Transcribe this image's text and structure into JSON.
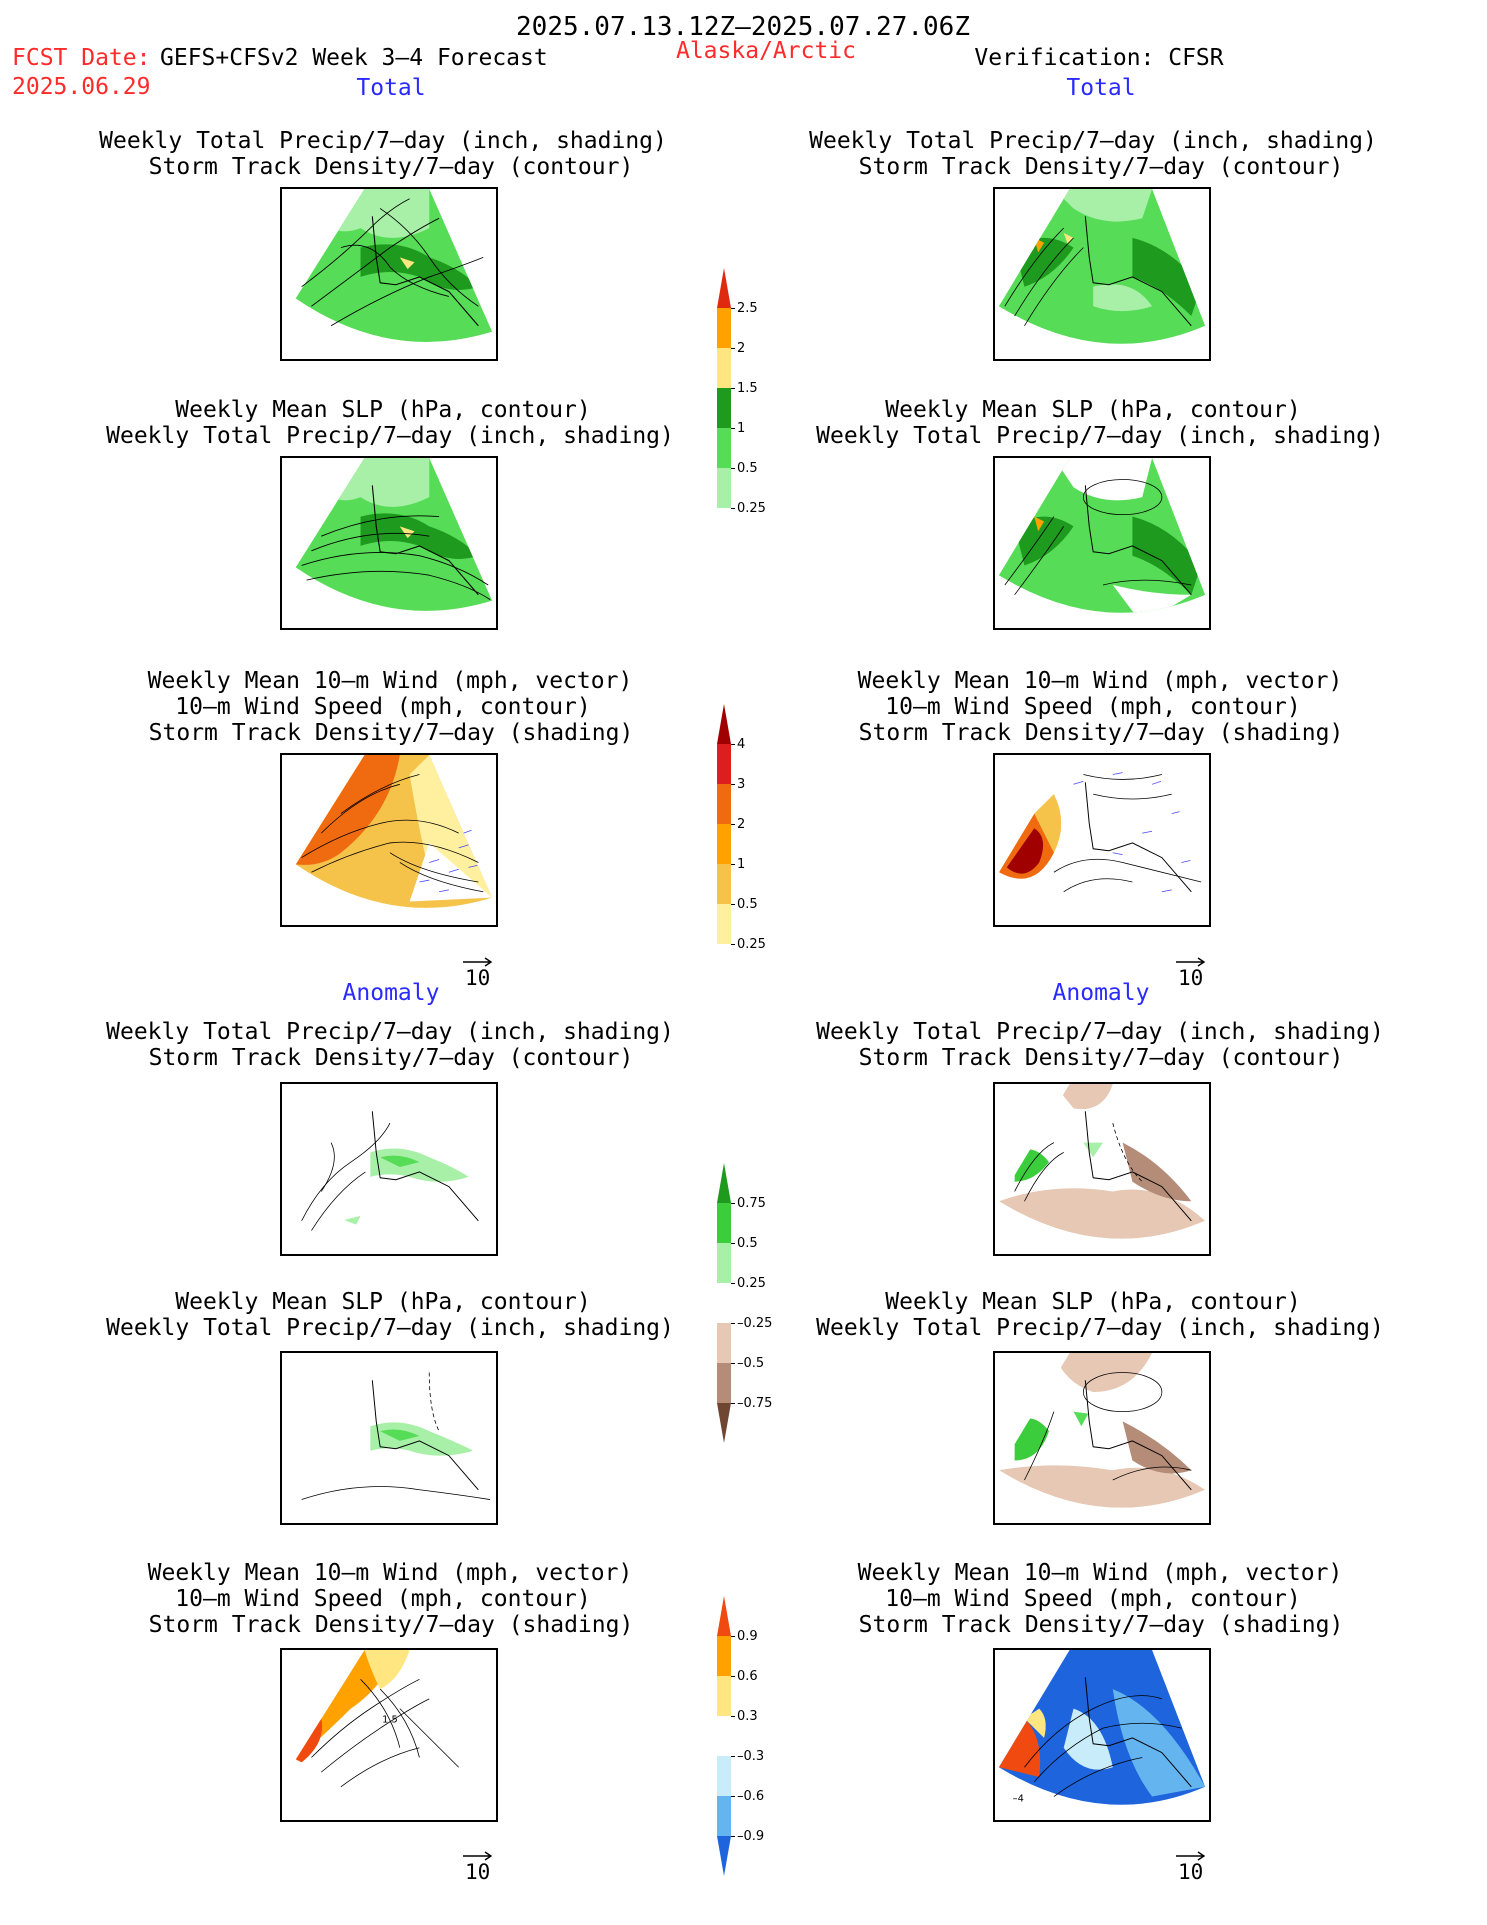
{
  "header": {
    "date_range": "2025.07.13.12Z–2025.07.27.06Z",
    "fcst_label": "FCST Date:",
    "fcst_model": "GEFS+CFSv2 Week 3–4 Forecast",
    "fcst_date": "2025.06.29",
    "region": "Alaska/Arctic",
    "verification": "Verification: CFSR"
  },
  "sections": {
    "total": "Total",
    "anomaly": "Anomaly"
  },
  "titles": {
    "precip_storm": [
      "Weekly Total Precip/7–day (inch, shading)",
      "Storm Track Density/7–day (contour)"
    ],
    "slp_precip": [
      "Weekly Mean SLP (hPa, contour)",
      "Weekly Total Precip/7–day (inch, shading)"
    ],
    "wind": [
      "Weekly Mean 10–m Wind (mph, vector)",
      "10–m Wind Speed (mph, contour)",
      "Storm Track Density/7–day (shading)"
    ]
  },
  "vector_ref": "10",
  "colorbars": [
    {
      "id": "precip-total",
      "ticks": [
        "2.5",
        "2",
        "1.5",
        "1",
        "0.5",
        "0.25"
      ],
      "colors": [
        "#e02a10",
        "#ffa200",
        "#ffe680",
        "#1e9a1e",
        "#56dc56",
        "#a8f0a8",
        "#ffffff"
      ]
    },
    {
      "id": "storm-total",
      "ticks": [
        "4",
        "3",
        "2",
        "1",
        "0.5",
        "0.25"
      ],
      "colors": [
        "#a00000",
        "#dc1e1e",
        "#f06a10",
        "#ffa200",
        "#f5c24a",
        "#fff0a0",
        "#ffffff"
      ]
    },
    {
      "id": "precip-anom",
      "ticks": [
        "0.75",
        "0.5",
        "0.25",
        "–0.25",
        "–0.5",
        "–0.75"
      ],
      "colors": [
        "#1e9a1e",
        "#3ccd3c",
        "#a8f0a8",
        "#ffffff",
        "#e6c8b4",
        "#b48c78",
        "#6e4632"
      ]
    },
    {
      "id": "storm-anom",
      "ticks": [
        "0.9",
        "0.6",
        "0.3",
        "–0.3",
        "–0.6",
        "–0.9"
      ],
      "colors": [
        "#f04a10",
        "#ffa200",
        "#ffe680",
        "#ffffff",
        "#c8ecfa",
        "#64b4f0",
        "#1e64dc"
      ]
    }
  ],
  "map_labels": {
    "fcst_anom_wind": "1.5",
    "verif_anom_wind": "–4"
  },
  "colors": {
    "red_text": "#ff2a2a",
    "blue_text": "#2a2aff"
  }
}
